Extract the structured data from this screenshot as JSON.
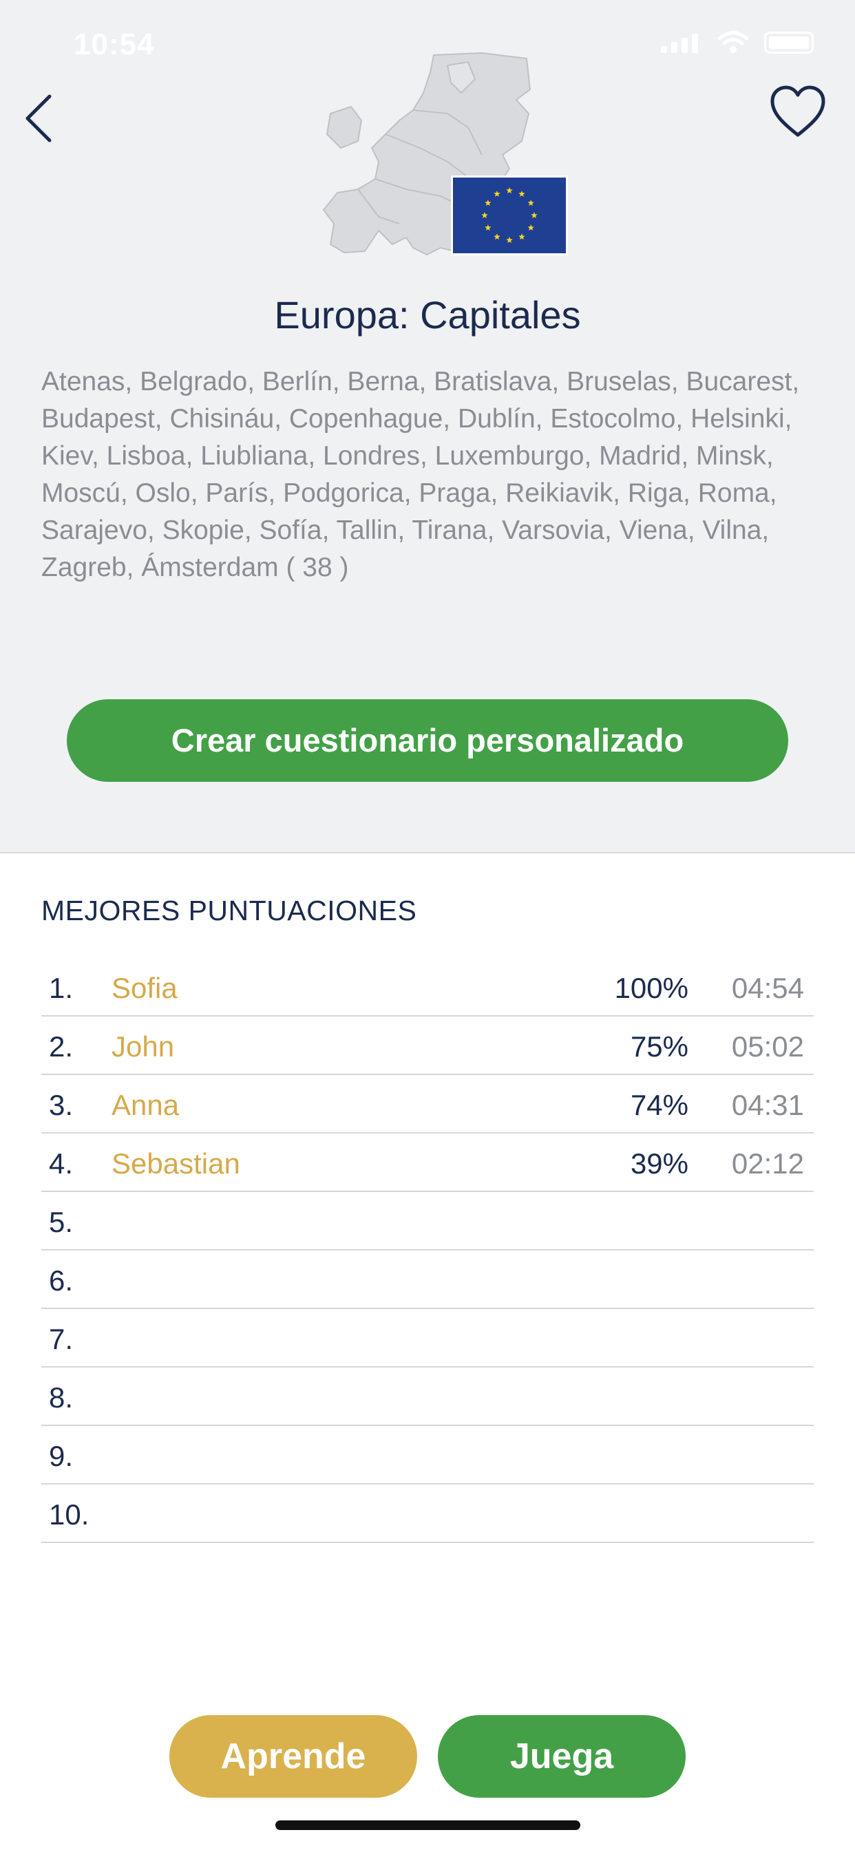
{
  "status": {
    "time": "10:54"
  },
  "header": {
    "title": "Europa: Capitales",
    "description": "Atenas, Belgrado, Berlín, Berna, Bratislava, Bruselas, Bucarest, Budapest, Chisináu, Copenhague, Dublín, Estocolmo, Helsinki, Kiev, Lisboa, Liubliana, Londres, Luxemburgo, Madrid, Minsk, Moscú, Oslo, París, Podgorica, Praga, Reikiavik, Riga, Roma, Sarajevo, Skopie, Sofía, Tallin, Tirana, Varsovia, Viena, Vilna, Zagreb, Ámsterdam ( 38 )"
  },
  "cta": {
    "label": "Crear cuestionario personalizado"
  },
  "scores": {
    "title": "MEJORES PUNTUACIONES",
    "rows": [
      {
        "rank": "1.",
        "name": "Sofia",
        "percent": "100%",
        "time": "04:54"
      },
      {
        "rank": "2.",
        "name": "John",
        "percent": "75%",
        "time": "05:02"
      },
      {
        "rank": "3.",
        "name": "Anna",
        "percent": "74%",
        "time": "04:31"
      },
      {
        "rank": "4.",
        "name": "Sebastian",
        "percent": "39%",
        "time": "02:12"
      },
      {
        "rank": "5.",
        "name": "",
        "percent": "",
        "time": ""
      },
      {
        "rank": "6.",
        "name": "",
        "percent": "",
        "time": ""
      },
      {
        "rank": "7.",
        "name": "",
        "percent": "",
        "time": ""
      },
      {
        "rank": "8.",
        "name": "",
        "percent": "",
        "time": ""
      },
      {
        "rank": "9.",
        "name": "",
        "percent": "",
        "time": ""
      },
      {
        "rank": "10.",
        "name": "",
        "percent": "",
        "time": ""
      }
    ]
  },
  "buttons": {
    "learn": "Aprende",
    "play": "Juega"
  },
  "colors": {
    "accent_green": "#43a047",
    "accent_gold": "#d9b24e",
    "navy": "#1b2a4e",
    "eu_blue": "#1f3f93",
    "eu_star": "#f7d51d"
  },
  "icons": {
    "back": "chevron-left-icon",
    "favorite": "heart-icon",
    "map": "europe-map-icon",
    "flag": "eu-flag-icon"
  }
}
